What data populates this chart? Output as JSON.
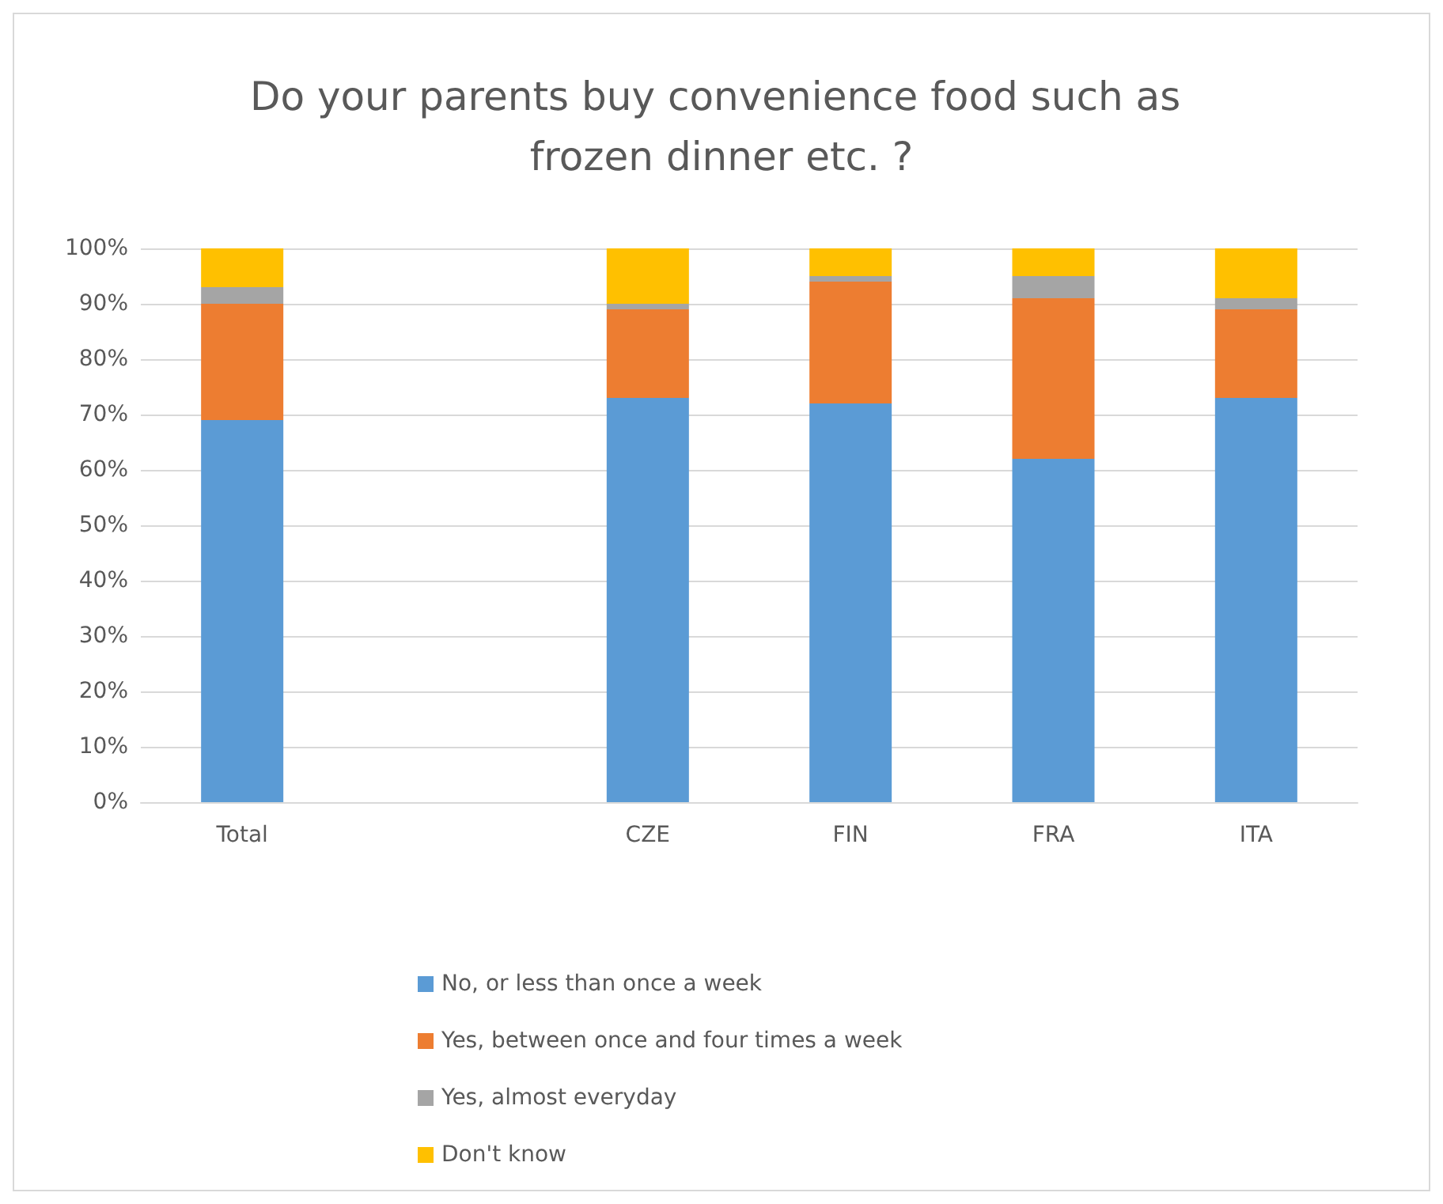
{
  "chart_data": {
    "type": "bar",
    "title": "Do your parents buy convenience food such as frozen dinner etc. ?",
    "stacked": true,
    "categories": [
      "Total",
      null,
      "CZE",
      "FIN",
      "FRA",
      "ITA"
    ],
    "series": [
      {
        "name": "No, or less than once a week",
        "color": "#5b9bd5",
        "values": [
          69,
          null,
          73,
          72,
          62,
          73
        ]
      },
      {
        "name": "Yes, between once and four times a week",
        "color": "#ed7d31",
        "values": [
          21,
          null,
          16,
          22,
          29,
          16
        ]
      },
      {
        "name": "Yes, almost everyday",
        "color": "#a5a5a5",
        "values": [
          3,
          null,
          1,
          1,
          4,
          2
        ]
      },
      {
        "name": "Don't know",
        "color": "#ffc000",
        "values": [
          7,
          null,
          10,
          5,
          5,
          9
        ]
      }
    ],
    "ylim": [
      0,
      100
    ],
    "yticks": [
      {
        "value": 0,
        "label": "0%"
      },
      {
        "value": 10,
        "label": "10%"
      },
      {
        "value": 20,
        "label": "20%"
      },
      {
        "value": 30,
        "label": "30%"
      },
      {
        "value": 40,
        "label": "40%"
      },
      {
        "value": 50,
        "label": "50%"
      },
      {
        "value": 60,
        "label": "60%"
      },
      {
        "value": 70,
        "label": "70%"
      },
      {
        "value": 80,
        "label": "80%"
      },
      {
        "value": 90,
        "label": "90%"
      },
      {
        "value": 100,
        "label": "100%"
      }
    ],
    "grid": "y",
    "legend": "bottom"
  }
}
